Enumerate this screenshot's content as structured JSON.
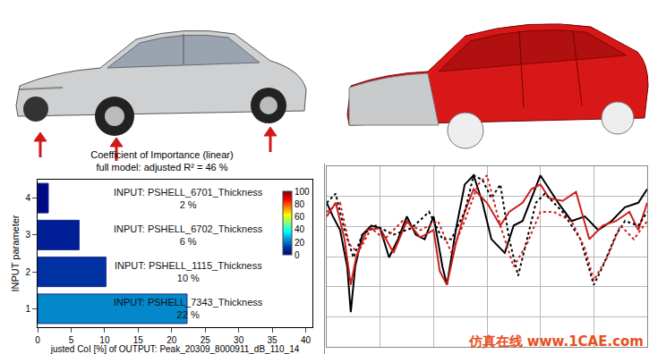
{
  "chart_data": [
    {
      "type": "bar",
      "orientation": "horizontal",
      "title": "Coefficient of Importance (linear)",
      "subtitle": "full model: adjusted R² = 46 %",
      "x_label": "justed CoI [%] of OUTPUT: Peak_20309_8000911_dB_110_14",
      "y_label": "INPUT parameter",
      "y": [
        1,
        2,
        3,
        4
      ],
      "labels": [
        "INPUT: PSHELL_7343_Thickness",
        "INPUT: PSHELL_1115_Thickness",
        "INPUT: PSHELL_6702_Thickness",
        "INPUT: PSHELL_6701_Thickness"
      ],
      "values": [
        22.3,
        10.2,
        6.2,
        1.6
      ],
      "value_labels": [
        "22 %",
        "10 %",
        "6 %",
        "2 %"
      ],
      "data_labels": true,
      "color": "Jet",
      "colorbar_range": [
        0,
        100
      ],
      "colorbar_ticks": [
        0,
        20,
        40,
        60,
        80,
        100
      ],
      "xlim": [
        0,
        41
      ],
      "xticks": [
        0,
        5,
        10,
        15,
        20,
        25,
        30,
        35,
        40
      ],
      "ylim": [
        0.5,
        4.5
      ],
      "yticks": [
        1,
        2,
        3,
        4
      ],
      "grid": false
    },
    {
      "type": "line",
      "grid": true,
      "tick_labels": false,
      "xlim": [
        0,
        360
      ],
      "xticks": [
        0,
        60,
        120,
        180,
        240,
        300,
        360
      ],
      "ylim": [
        0,
        198
      ],
      "yticks": [
        0,
        33,
        66,
        99,
        132,
        165,
        198
      ],
      "series": [
        {
          "color": "#000000",
          "line_style": "solid",
          "x": [
            0,
            7,
            15,
            23,
            27,
            32,
            40,
            50,
            60,
            70,
            80,
            90,
            100,
            110,
            120,
            130,
            135,
            145,
            155,
            165,
            175,
            185,
            200,
            210,
            220,
            230,
            240,
            250,
            260,
            275,
            290,
            305,
            320,
            335,
            350,
            360
          ],
          "values": [
            158,
            143,
            128,
            88,
            38,
            88,
            123,
            133,
            130,
            98,
            118,
            143,
            123,
            118,
            143,
            88,
            68,
            128,
            178,
            188,
            158,
            118,
            103,
            133,
            138,
            163,
            188,
            173,
            158,
            138,
            143,
            128,
            138,
            153,
            158,
            173
          ]
        },
        {
          "color": "#cc1f1f",
          "line_style": "solid",
          "x": [
            0,
            10,
            20,
            27,
            33,
            45,
            60,
            75,
            90,
            105,
            120,
            127,
            135,
            145,
            155,
            165,
            180,
            195,
            205,
            220,
            230,
            240,
            250,
            265,
            280,
            295,
            310,
            325,
            340,
            350,
            360
          ],
          "values": [
            143,
            158,
            118,
            68,
            98,
            128,
            130,
            103,
            138,
            120,
            128,
            83,
            68,
            113,
            148,
            173,
            158,
            133,
            148,
            158,
            173,
            178,
            163,
            160,
            170,
            118,
            133,
            138,
            148,
            128,
            158
          ]
        },
        {
          "color": "#000000",
          "line_style": "dotted",
          "x": [
            0,
            10,
            20,
            30,
            40,
            55,
            75,
            95,
            115,
            130,
            140,
            155,
            165,
            175,
            185,
            195,
            205,
            215,
            225,
            235,
            245,
            265,
            285,
            300,
            310,
            325,
            335,
            350,
            360
          ],
          "values": [
            158,
            168,
            128,
            98,
            123,
            133,
            123,
            130,
            148,
            118,
            118,
            148,
            188,
            183,
            163,
            178,
            118,
            78,
            118,
            158,
            168,
            148,
            118,
            68,
            88,
            123,
            138,
            133,
            148
          ]
        },
        {
          "color": "#cc1f1f",
          "line_style": "dotted",
          "x": [
            0,
            15,
            25,
            35,
            50,
            65,
            85,
            105,
            125,
            140,
            155,
            170,
            180,
            195,
            210,
            225,
            240,
            255,
            275,
            290,
            300,
            315,
            330,
            345,
            360
          ],
          "values": [
            148,
            158,
            113,
            103,
            130,
            118,
            138,
            128,
            138,
            103,
            138,
            178,
            188,
            133,
            88,
            113,
            148,
            148,
            138,
            108,
            73,
            98,
            133,
            118,
            138
          ]
        }
      ]
    }
  ],
  "watermark": "仿真在线 www.1CAE.com"
}
